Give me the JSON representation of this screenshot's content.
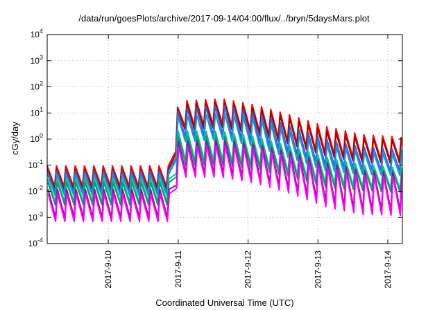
{
  "chart_data": {
    "type": "line",
    "title": "/data/run/goesPlots/archive/2017-09-14/04:00/flux/../bryn/5daysMars.plot",
    "xlabel": "Coordinated Universal Time (UTC)",
    "ylabel": "cGy/day",
    "y_scale": "log",
    "ylim": [
      0.0001,
      10000
    ],
    "xlim": [
      "2017-09-09 03:00",
      "2017-09-14 05:00"
    ],
    "x_ticks": [
      "2017-9-10",
      "2017-9-11",
      "2017-9-12",
      "2017-9-13",
      "2017-9-14"
    ],
    "y_ticks": [
      {
        "base": "10",
        "exp": "-4"
      },
      {
        "base": "10",
        "exp": "-3"
      },
      {
        "base": "10",
        "exp": "-2"
      },
      {
        "base": "10",
        "exp": "-1"
      },
      {
        "base": "10",
        "exp": "0"
      },
      {
        "base": "10",
        "exp": "1"
      },
      {
        "base": "10",
        "exp": "2"
      },
      {
        "base": "10",
        "exp": "3"
      },
      {
        "base": "10",
        "exp": "4"
      }
    ],
    "grid": true,
    "legend": "none",
    "x_hours": [
      0,
      12,
      24,
      36,
      40,
      43,
      45,
      48,
      60,
      72,
      84,
      96,
      108,
      122
    ],
    "series": [
      {
        "color": "#ff0000",
        "peak": [
          0.095,
          0.095,
          0.095,
          0.095,
          0.095,
          0.095,
          30,
          30,
          35,
          20,
          8,
          3,
          1.5,
          1.2
        ],
        "trough": [
          0.016,
          0.016,
          0.016,
          0.016,
          0.016,
          0.016,
          3,
          3,
          4,
          2,
          0.8,
          0.3,
          0.18,
          0.16
        ]
      },
      {
        "color": "#aa0000",
        "peak": [
          0.07,
          0.07,
          0.07,
          0.07,
          0.07,
          0.07,
          22,
          22,
          26,
          15,
          6,
          2,
          1.1,
          0.9
        ],
        "trough": [
          0.012,
          0.012,
          0.012,
          0.012,
          0.012,
          0.012,
          2.2,
          2.2,
          2.8,
          1.5,
          0.6,
          0.22,
          0.13,
          0.12
        ]
      },
      {
        "color": "#1a6fe0",
        "peak": [
          0.06,
          0.06,
          0.06,
          0.06,
          0.06,
          0.06,
          15,
          15,
          20,
          10,
          3,
          1,
          0.5,
          0.4
        ],
        "trough": [
          0.009,
          0.009,
          0.009,
          0.009,
          0.009,
          0.009,
          1.2,
          1.2,
          1.5,
          0.8,
          0.3,
          0.1,
          0.07,
          0.06
        ]
      },
      {
        "color": "#1e8fd8",
        "peak": [
          0.045,
          0.045,
          0.045,
          0.045,
          0.045,
          0.045,
          8,
          8,
          10,
          6,
          1.8,
          0.6,
          0.32,
          0.26
        ],
        "trough": [
          0.007,
          0.007,
          0.007,
          0.007,
          0.007,
          0.007,
          0.8,
          0.8,
          1,
          0.5,
          0.18,
          0.06,
          0.045,
          0.04
        ]
      },
      {
        "color": "#00c890",
        "peak": [
          0.03,
          0.03,
          0.03,
          0.03,
          0.03,
          0.03,
          2,
          2,
          2,
          1.2,
          0.5,
          0.2,
          0.1,
          0.08
        ],
        "trough": [
          0.004,
          0.004,
          0.004,
          0.004,
          0.004,
          0.004,
          0.15,
          0.15,
          0.15,
          0.1,
          0.05,
          0.02,
          0.015,
          0.012
        ]
      },
      {
        "color": "#00a070",
        "peak": [
          0.022,
          0.022,
          0.022,
          0.022,
          0.022,
          0.022,
          1.3,
          1.3,
          1.3,
          0.8,
          0.35,
          0.14,
          0.07,
          0.06
        ],
        "trough": [
          0.003,
          0.003,
          0.003,
          0.003,
          0.003,
          0.003,
          0.1,
          0.1,
          0.1,
          0.07,
          0.035,
          0.014,
          0.011,
          0.009
        ]
      },
      {
        "color": "#b0009a",
        "peak": [
          0.012,
          0.012,
          0.012,
          0.012,
          0.012,
          0.012,
          0.8,
          0.8,
          0.9,
          0.6,
          0.3,
          0.12,
          0.06,
          0.05
        ],
        "trough": [
          0.001,
          0.001,
          0.001,
          0.001,
          0.001,
          0.001,
          0.05,
          0.05,
          0.05,
          0.03,
          0.012,
          0.004,
          0.002,
          0.0018
        ]
      },
      {
        "color": "#ff00ff",
        "peak": [
          0.008,
          0.008,
          0.008,
          0.008,
          0.008,
          0.008,
          0.5,
          0.5,
          0.6,
          0.4,
          0.2,
          0.08,
          0.04,
          0.035
        ],
        "trough": [
          0.0007,
          0.0007,
          0.0007,
          0.0007,
          0.0007,
          0.0007,
          0.035,
          0.035,
          0.035,
          0.02,
          0.008,
          0.0025,
          0.0013,
          0.0012
        ]
      }
    ]
  }
}
